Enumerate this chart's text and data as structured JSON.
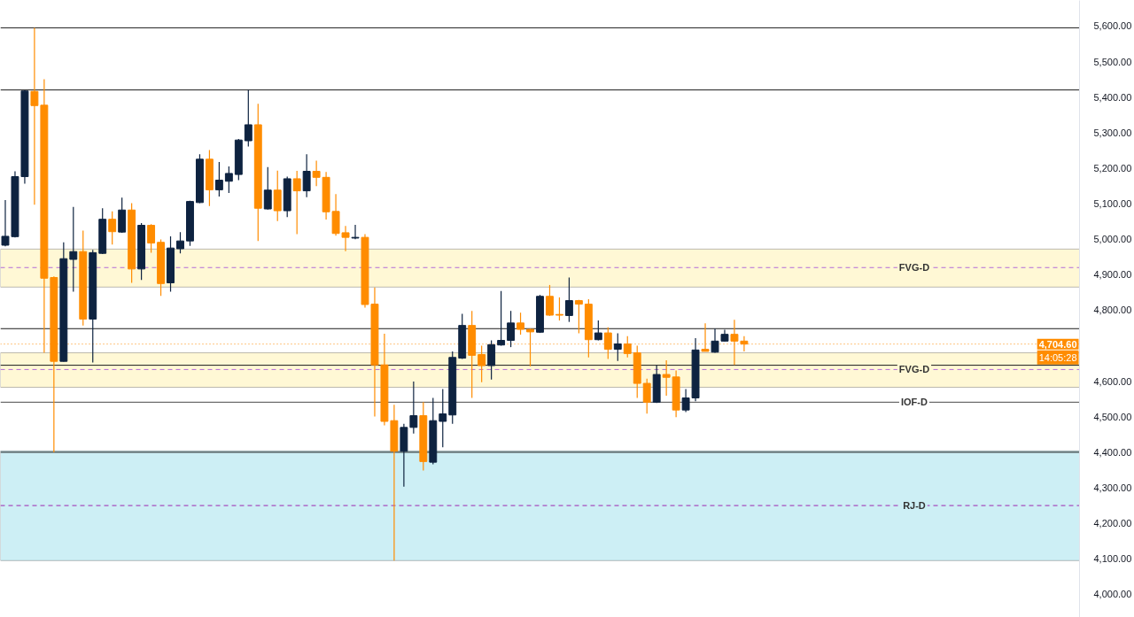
{
  "chart_data": {
    "type": "candlestick",
    "categories": [
      null,
      null,
      null,
      null,
      null,
      null,
      null,
      null,
      null,
      null,
      null,
      null,
      null,
      null,
      null,
      null,
      null,
      null,
      null,
      null,
      null,
      null,
      null,
      null,
      null,
      null,
      null,
      null,
      null,
      null,
      null,
      null,
      null,
      null,
      null,
      null,
      null,
      null,
      null,
      null,
      null,
      null,
      null,
      null,
      null,
      null,
      null,
      null,
      null,
      null,
      null,
      null,
      null,
      null,
      null,
      null,
      null,
      null,
      null,
      null,
      null,
      null,
      null,
      null,
      null,
      null,
      null,
      null,
      null,
      null,
      null,
      null,
      null,
      null,
      null,
      null,
      null,
      null,
      null,
      null,
      null,
      null,
      null,
      null,
      null,
      null,
      null,
      null,
      null,
      null,
      null,
      null,
      null,
      null,
      null,
      null,
      null,
      null,
      null,
      null,
      null,
      null,
      null,
      null,
      null,
      null,
      null,
      null,
      null,
      null,
      null
    ],
    "ohlc": [
      [
        4983,
        5110,
        4980,
        5008
      ],
      [
        5007,
        5191,
        5005,
        5176
      ],
      [
        5176,
        5419,
        5156,
        5417
      ],
      [
        5416,
        5595,
        5097,
        5376
      ],
      [
        5377,
        5450,
        4680,
        4890
      ],
      [
        4892,
        4895,
        4400,
        4656
      ],
      [
        4656,
        4991,
        4655,
        4945
      ],
      [
        4943,
        5091,
        4852,
        4965
      ],
      [
        4965,
        5024,
        4757,
        4775
      ],
      [
        4775,
        4970,
        4653,
        4962
      ],
      [
        4960,
        5087,
        4958,
        5056
      ],
      [
        5056,
        5078,
        4985,
        5021
      ],
      [
        5020,
        5117,
        5018,
        5082
      ],
      [
        5082,
        5101,
        4877,
        4916
      ],
      [
        4916,
        5045,
        4885,
        5039
      ],
      [
        5039,
        5042,
        4962,
        4989
      ],
      [
        4991,
        4999,
        4840,
        4875
      ],
      [
        4877,
        5008,
        4852,
        4975
      ],
      [
        4973,
        5020,
        4960,
        4995
      ],
      [
        4995,
        5108,
        4981,
        5106
      ],
      [
        5103,
        5239,
        5101,
        5225
      ],
      [
        5225,
        5251,
        5093,
        5139
      ],
      [
        5139,
        5217,
        5120,
        5166
      ],
      [
        5163,
        5205,
        5130,
        5185
      ],
      [
        5182,
        5282,
        5166,
        5279
      ],
      [
        5277,
        5420,
        5261,
        5322
      ],
      [
        5322,
        5381,
        4995,
        5087
      ],
      [
        5085,
        5203,
        5083,
        5138
      ],
      [
        5138,
        5193,
        5051,
        5080
      ],
      [
        5080,
        5176,
        5062,
        5170
      ],
      [
        5170,
        5192,
        5014,
        5136
      ],
      [
        5136,
        5239,
        5118,
        5191
      ],
      [
        5191,
        5221,
        5149,
        5174
      ],
      [
        5174,
        5189,
        5055,
        5077
      ],
      [
        5078,
        5127,
        5010,
        5016
      ],
      [
        5018,
        5037,
        4966,
        5005
      ],
      [
        5003,
        5040,
        5000,
        5005
      ],
      [
        5005,
        5014,
        4807,
        4816
      ],
      [
        4817,
        4864,
        4501,
        4646
      ],
      [
        4646,
        4734,
        4476,
        4487
      ],
      [
        4489,
        4534,
        4095,
        4403
      ],
      [
        4403,
        4480,
        4303,
        4470
      ],
      [
        4470,
        4599,
        4453,
        4503
      ],
      [
        4503,
        4541,
        4349,
        4374
      ],
      [
        4372,
        4553,
        4366,
        4489
      ],
      [
        4487,
        4578,
        4414,
        4508
      ],
      [
        4505,
        4684,
        4480,
        4667
      ],
      [
        4665,
        4790,
        4663,
        4757
      ],
      [
        4757,
        4798,
        4553,
        4673
      ],
      [
        4675,
        4700,
        4597,
        4644
      ],
      [
        4644,
        4715,
        4605,
        4703
      ],
      [
        4702,
        4854,
        4700,
        4715
      ],
      [
        4715,
        4798,
        4696,
        4764
      ],
      [
        4764,
        4793,
        4731,
        4746
      ],
      [
        4746,
        4748,
        4642,
        4739
      ],
      [
        4738,
        4843,
        4736,
        4839
      ],
      [
        4839,
        4871,
        4784,
        4786
      ],
      [
        4788,
        4836,
        4771,
        4786
      ],
      [
        4785,
        4892,
        4767,
        4827
      ],
      [
        4827,
        4829,
        4735,
        4817
      ],
      [
        4817,
        4831,
        4667,
        4717
      ],
      [
        4717,
        4771,
        4715,
        4736
      ],
      [
        4736,
        4752,
        4663,
        4690
      ],
      [
        4690,
        4735,
        4657,
        4705
      ],
      [
        4705,
        4727,
        4667,
        4678
      ],
      [
        4680,
        4700,
        4553,
        4594
      ],
      [
        4594,
        4607,
        4509,
        4541
      ],
      [
        4541,
        4645,
        4539,
        4619
      ],
      [
        4619,
        4659,
        4559,
        4611
      ],
      [
        4612,
        4630,
        4499,
        4519
      ],
      [
        4519,
        4578,
        4513,
        4553
      ],
      [
        4553,
        4721,
        4544,
        4688
      ],
      [
        4690,
        4763,
        4684,
        4684
      ],
      [
        4682,
        4748,
        4680,
        4713
      ],
      [
        4713,
        4745,
        4712,
        4732
      ],
      [
        4732,
        4773,
        4646,
        4713
      ],
      [
        4713,
        4727,
        4684,
        4704.6
      ],
      null,
      null,
      null,
      null,
      null,
      null,
      null,
      null,
      null,
      null,
      null,
      null,
      null,
      null,
      null,
      null,
      null,
      null,
      null,
      null,
      null,
      null,
      null,
      null,
      null,
      null,
      null,
      null,
      null,
      null,
      null,
      null,
      null,
      null
    ],
    "colors": [
      "#0e2340",
      "#0e2340",
      "#0e2340",
      "#ff8c00",
      "#ff8c00",
      "#ff8c00",
      "#0e2340",
      "#0e2340",
      "#ff8c00",
      "#0e2340",
      "#0e2340",
      "#ff8c00",
      "#0e2340",
      "#ff8c00",
      "#0e2340",
      "#ff8c00",
      "#ff8c00",
      "#0e2340",
      "#0e2340",
      "#0e2340",
      "#0e2340",
      "#ff8c00",
      "#0e2340",
      "#0e2340",
      "#0e2340",
      "#0e2340",
      "#ff8c00",
      "#0e2340",
      "#ff8c00",
      "#0e2340",
      "#ff8c00",
      "#0e2340",
      "#ff8c00",
      "#ff8c00",
      "#ff8c00",
      "#ff8c00",
      "#0e2340",
      "#ff8c00",
      "#ff8c00",
      "#ff8c00",
      "#ff8c00",
      "#0e2340",
      "#0e2340",
      "#ff8c00",
      "#0e2340",
      "#0e2340",
      "#0e2340",
      "#0e2340",
      "#ff8c00",
      "#ff8c00",
      "#0e2340",
      "#0e2340",
      "#0e2340",
      "#ff8c00",
      "#ff8c00",
      "#0e2340",
      "#ff8c00",
      "#ff8c00",
      "#0e2340",
      "#ff8c00",
      "#ff8c00",
      "#0e2340",
      "#ff8c00",
      "#0e2340",
      "#ff8c00",
      "#ff8c00",
      "#ff8c00",
      "#0e2340",
      "#ff8c00",
      "#ff8c00",
      "#0e2340",
      "#0e2340",
      "#ff8c00",
      "#0e2340",
      "#0e2340",
      "#ff8c00",
      "#ff8c00",
      null,
      null,
      null,
      null,
      null,
      null,
      null,
      null,
      null,
      null,
      null,
      null,
      null,
      null,
      null,
      null,
      null,
      null,
      null,
      null,
      null,
      null,
      null,
      null,
      null,
      null,
      null,
      null,
      null,
      null,
      null,
      null,
      null,
      null
    ],
    "ylim": [
      3935,
      5672
    ],
    "yticks": [
      {
        "value": 4000,
        "label": "4,000.00"
      },
      {
        "value": 4100,
        "label": "4,100.00"
      },
      {
        "value": 4200,
        "label": "4,200.00"
      },
      {
        "value": 4300,
        "label": "4,300.00"
      },
      {
        "value": 4400,
        "label": "4,400.00"
      },
      {
        "value": 4500,
        "label": "4,500.00"
      },
      {
        "value": 4600,
        "label": "4,600.00"
      },
      {
        "value": 4800,
        "label": "4,800.00"
      },
      {
        "value": 4900,
        "label": "4,900.00"
      },
      {
        "value": 5000,
        "label": "5,000.00"
      },
      {
        "value": 5100,
        "label": "5,100.00"
      },
      {
        "value": 5200,
        "label": "5,200.00"
      },
      {
        "value": 5300,
        "label": "5,300.00"
      },
      {
        "value": 5400,
        "label": "5,400.00"
      },
      {
        "value": 5500,
        "label": "5,500.00"
      },
      {
        "value": 5600,
        "label": "5,600.00"
      }
    ],
    "tick_labels": "y",
    "bands": [
      {
        "axis": "y",
        "from": 4865,
        "to": 4972,
        "color": "#fff8d5"
      },
      {
        "axis": "y",
        "from": 4583,
        "to": 4680,
        "color": "#fff8d5"
      },
      {
        "axis": "y",
        "from": 4095,
        "to": 4404,
        "color": "#cdeff5"
      }
    ],
    "ref_lines": [
      {
        "axis": "y",
        "value": 5595,
        "label": null,
        "color": "#1c1c1c",
        "line_style": "solid"
      },
      {
        "axis": "y",
        "value": 5420,
        "label": null,
        "color": "#1c1c1c",
        "line_style": "solid"
      },
      {
        "axis": "y",
        "value": 4400,
        "label": null,
        "color": "#1c1c1c",
        "line_style": "solid"
      },
      {
        "axis": "y",
        "value": 4541,
        "label": "IOF-D",
        "color": "#4a4a4a",
        "line_style": "solid"
      },
      {
        "axis": "y",
        "value": 4748,
        "label": null,
        "color": "#1c1c1c",
        "line_style": "solid"
      },
      {
        "axis": "y",
        "value": 4645,
        "label": null,
        "color": "#1c1c1c",
        "line_style": "solid"
      },
      {
        "axis": "y",
        "value": 4920,
        "label": "FVG-D",
        "color": "#b36ad8",
        "line_style": "dashed"
      },
      {
        "axis": "y",
        "value": 4633,
        "label": "FVG-D",
        "color": "#b36ad8",
        "line_style": "dashed"
      },
      {
        "axis": "y",
        "value": 4250,
        "label": "RJ-D",
        "color": "#9c27b0",
        "line_style": "dashed"
      },
      {
        "axis": "y",
        "value": 4704.6,
        "label": "4,704.60",
        "color": "#ff8c00",
        "line_style": "dotted"
      }
    ],
    "annotations": [
      "14:05:28"
    ]
  }
}
